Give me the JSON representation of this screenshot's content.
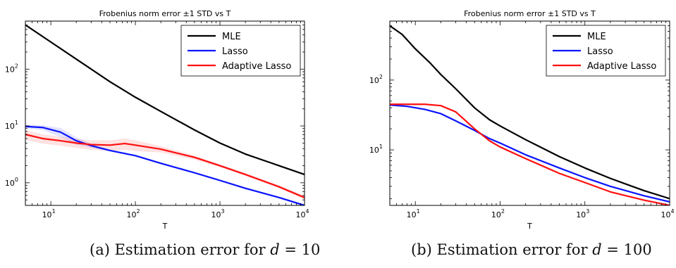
{
  "chart_data": [
    {
      "type": "line",
      "title": "Frobenius norm error ±1 STD vs T",
      "xlabel": "T",
      "ylabel": "",
      "xscale": "log",
      "yscale": "log",
      "xlim": [
        5,
        10000
      ],
      "ylim": [
        0.4,
        700
      ],
      "xticks": [
        {
          "v": 10,
          "exp": "1"
        },
        {
          "v": 100,
          "exp": "2"
        },
        {
          "v": 1000,
          "exp": "3"
        },
        {
          "v": 10000,
          "exp": "4"
        }
      ],
      "yticks": [
        {
          "v": 1,
          "exp": "0"
        },
        {
          "v": 10,
          "exp": "1"
        },
        {
          "v": 100,
          "exp": "2"
        }
      ],
      "grid": false,
      "legend": "top-right",
      "series": [
        {
          "name": "MLE",
          "color": "#000000",
          "x": [
            5,
            10,
            20,
            50,
            100,
            200,
            500,
            1000,
            2000,
            5000,
            10000
          ],
          "y": [
            600,
            300,
            150,
            60,
            32,
            18,
            8.5,
            5,
            3.2,
            2,
            1.4
          ]
        },
        {
          "name": "Lasso",
          "color": "#0a14ff",
          "x": [
            5,
            8,
            13,
            20,
            30,
            50,
            100,
            200,
            500,
            1000,
            2000,
            5000,
            10000
          ],
          "y": [
            9.8,
            9.4,
            7.8,
            5.5,
            4.5,
            3.7,
            3.0,
            2.2,
            1.5,
            1.1,
            0.8,
            0.55,
            0.4
          ],
          "band": [
            0.7,
            0.9,
            1.4,
            0.8,
            0.35,
            0.15,
            0.1,
            0.08,
            0.06,
            0.04,
            0.03,
            0.02,
            0.02
          ]
        },
        {
          "name": "Adaptive Lasso",
          "color": "#ff0f0f",
          "x": [
            5,
            8,
            13,
            20,
            30,
            50,
            75,
            100,
            200,
            500,
            1000,
            2000,
            5000,
            10000
          ],
          "y": [
            7.1,
            6.0,
            5.5,
            5.0,
            4.7,
            4.6,
            4.9,
            4.6,
            3.9,
            2.8,
            2.0,
            1.4,
            0.85,
            0.55
          ],
          "band": [
            1.4,
            1.1,
            1.0,
            0.9,
            0.9,
            1.0,
            1.1,
            1.0,
            0.5,
            0.25,
            0.12,
            0.08,
            0.05,
            0.04
          ]
        }
      ]
    },
    {
      "type": "line",
      "title": "Frobenius norm error ±1 STD vs T",
      "xlabel": "T",
      "ylabel": "",
      "xscale": "log",
      "yscale": "log",
      "xlim": [
        5,
        10000
      ],
      "ylim": [
        1.6,
        700
      ],
      "xticks": [
        {
          "v": 10,
          "exp": "1"
        },
        {
          "v": 100,
          "exp": "2"
        },
        {
          "v": 1000,
          "exp": "3"
        },
        {
          "v": 10000,
          "exp": "4"
        }
      ],
      "yticks": [
        {
          "v": 10,
          "exp": "1"
        },
        {
          "v": 100,
          "exp": "2"
        }
      ],
      "grid": false,
      "legend": "top-right",
      "series": [
        {
          "name": "MLE",
          "color": "#000000",
          "x": [
            5,
            7,
            10,
            15,
            20,
            30,
            50,
            75,
            100,
            200,
            500,
            1000,
            2000,
            5000,
            10000
          ],
          "y": [
            600,
            450,
            280,
            175,
            120,
            75,
            40,
            27,
            22,
            14,
            8,
            5.5,
            3.9,
            2.6,
            2.0
          ]
        },
        {
          "name": "Lasso",
          "color": "#0a14ff",
          "x": [
            5,
            8,
            13,
            20,
            30,
            50,
            75,
            100,
            200,
            500,
            1000,
            2000,
            5000,
            10000
          ],
          "y": [
            44,
            42,
            38,
            33,
            26,
            19,
            14.5,
            12.5,
            8.5,
            5.5,
            4.0,
            3.0,
            2.2,
            1.8
          ]
        },
        {
          "name": "Adaptive Lasso",
          "color": "#ff0f0f",
          "x": [
            5,
            8,
            13,
            20,
            30,
            50,
            75,
            100,
            200,
            500,
            1000,
            2000,
            5000,
            10000
          ],
          "y": [
            45,
            45,
            45,
            43,
            35,
            20,
            13.5,
            11,
            7.5,
            4.6,
            3.4,
            2.5,
            1.9,
            1.6
          ]
        }
      ]
    }
  ],
  "captions": [
    {
      "text": "(a) Estimation error for ",
      "var": "d",
      "rest": " = 10"
    },
    {
      "text": "(b) Estimation error for ",
      "var": "d",
      "rest": " = 100"
    }
  ]
}
